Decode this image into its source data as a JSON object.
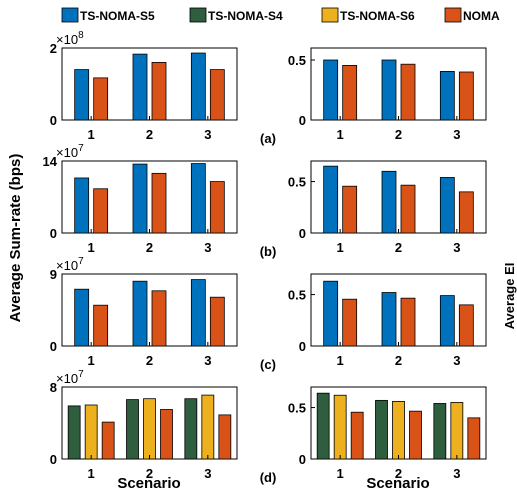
{
  "legend": {
    "items": [
      {
        "label": "TS-NOMA-S5",
        "color": "#0072BD"
      },
      {
        "label": "TS-NOMA-S4",
        "color": "#2E5E3E"
      },
      {
        "label": "TS-NOMA-S6",
        "color": "#EDB120"
      },
      {
        "label": "NOMA",
        "color": "#D95319"
      }
    ]
  },
  "labels": {
    "left_ylabel": "Average Sum-rate (bps)",
    "right_ylabel_fragment": "Average EI",
    "xlabel_left": "Scenario",
    "xlabel_right": "Scenario"
  },
  "chart_data": [
    {
      "type": "bar",
      "panel": "(a) left",
      "categories": [
        "1",
        "2",
        "3"
      ],
      "exponent_label": "×10^8",
      "ylim": [
        0,
        200000000.0
      ],
      "yticks": [
        "0",
        "2"
      ],
      "series": [
        {
          "name": "TS-NOMA-S5",
          "values": [
            140000000.0,
            183000000.0,
            186000000.0
          ]
        },
        {
          "name": "NOMA",
          "values": [
            117000000.0,
            160000000.0,
            140000000.0
          ]
        }
      ]
    },
    {
      "type": "bar",
      "panel": "(a) right",
      "categories": [
        "1",
        "2",
        "3"
      ],
      "ylim": [
        0,
        0.6
      ],
      "yticks": [
        "0",
        "0.5"
      ],
      "series": [
        {
          "name": "TS-NOMA-S5",
          "values": [
            0.5,
            0.5,
            0.405
          ]
        },
        {
          "name": "NOMA",
          "values": [
            0.455,
            0.465,
            0.4
          ]
        }
      ]
    },
    {
      "type": "bar",
      "panel": "(b) left",
      "categories": [
        "1",
        "2",
        "3"
      ],
      "exponent_label": "×10^7",
      "ylim": [
        0,
        140000000.0
      ],
      "yticks": [
        "0",
        "14"
      ],
      "series": [
        {
          "name": "TS-NOMA-S5",
          "values": [
            107000000.0,
            134000000.0,
            135000000.0
          ]
        },
        {
          "name": "NOMA",
          "values": [
            86000000.0,
            116000000.0,
            100000000.0
          ]
        }
      ]
    },
    {
      "type": "bar",
      "panel": "(b) right",
      "categories": [
        "1",
        "2",
        "3"
      ],
      "ylim": [
        0,
        0.7
      ],
      "yticks": [
        "0",
        "0.5"
      ],
      "series": [
        {
          "name": "TS-NOMA-S5",
          "values": [
            0.65,
            0.6,
            0.54
          ]
        },
        {
          "name": "NOMA",
          "values": [
            0.455,
            0.465,
            0.4
          ]
        }
      ]
    },
    {
      "type": "bar",
      "panel": "(c) left",
      "categories": [
        "1",
        "2",
        "3"
      ],
      "exponent_label": "×10^7",
      "ylim": [
        0,
        90000000.0
      ],
      "yticks": [
        "0",
        "9"
      ],
      "series": [
        {
          "name": "TS-NOMA-S5",
          "values": [
            71000000.0,
            81000000.0,
            83000000.0
          ]
        },
        {
          "name": "NOMA",
          "values": [
            51000000.0,
            69000000.0,
            61000000.0
          ]
        }
      ]
    },
    {
      "type": "bar",
      "panel": "(c) right",
      "categories": [
        "1",
        "2",
        "3"
      ],
      "ylim": [
        0,
        0.7
      ],
      "yticks": [
        "0",
        "0.5"
      ],
      "series": [
        {
          "name": "TS-NOMA-S5",
          "values": [
            0.63,
            0.52,
            0.49
          ]
        },
        {
          "name": "NOMA",
          "values": [
            0.455,
            0.465,
            0.4
          ]
        }
      ]
    },
    {
      "type": "bar",
      "panel": "(d) left",
      "categories": [
        "1",
        "2",
        "3"
      ],
      "exponent_label": "×10^7",
      "ylim": [
        0,
        80000000.0
      ],
      "yticks": [
        "0",
        "8"
      ],
      "series": [
        {
          "name": "TS-NOMA-S4",
          "values": [
            59000000.0,
            66000000.0,
            67000000.0
          ]
        },
        {
          "name": "TS-NOMA-S6",
          "values": [
            60000000.0,
            67000000.0,
            71000000.0
          ]
        },
        {
          "name": "NOMA",
          "values": [
            41000000.0,
            55000000.0,
            49000000.0
          ]
        }
      ]
    },
    {
      "type": "bar",
      "panel": "(d) right",
      "categories": [
        "1",
        "2",
        "3"
      ],
      "ylim": [
        0,
        0.7
      ],
      "yticks": [
        "0",
        "0.5"
      ],
      "series": [
        {
          "name": "TS-NOMA-S4",
          "values": [
            0.64,
            0.57,
            0.54
          ]
        },
        {
          "name": "TS-NOMA-S6",
          "values": [
            0.62,
            0.56,
            0.55
          ]
        },
        {
          "name": "NOMA",
          "values": [
            0.455,
            0.465,
            0.4
          ]
        }
      ]
    }
  ],
  "panel_tags": [
    "(a)",
    "(b)",
    "(c)",
    "(d)"
  ]
}
